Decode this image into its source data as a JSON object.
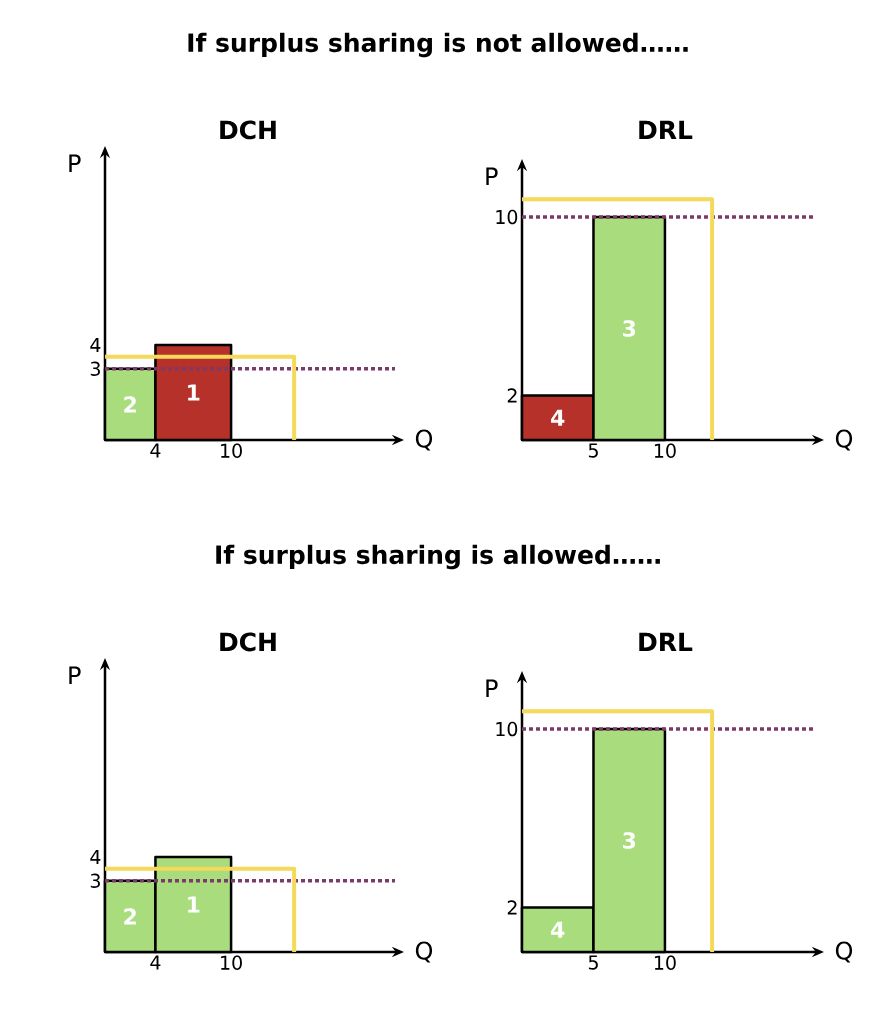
{
  "chart_data": [
    {
      "type": "area",
      "title": "If surplus sharing is not allowed……",
      "subtitle": "DCH",
      "xlabel": "Q",
      "ylabel": "P",
      "xlim": [
        0,
        23
      ],
      "ylim": [
        0,
        12
      ],
      "xticks": [
        4,
        10
      ],
      "yticks": [
        3,
        4
      ],
      "series": [
        {
          "name": "2",
          "color": "#a8dc7c",
          "x": [
            0,
            4
          ],
          "values": [
            3,
            3
          ]
        },
        {
          "name": "1",
          "color": "#b5312a",
          "x": [
            4,
            10
          ],
          "values": [
            4,
            4
          ]
        },
        {
          "type": "line",
          "color": "#f5d95a",
          "x": [
            0,
            15,
            15
          ],
          "values": [
            3.5,
            3.5,
            0
          ]
        }
      ],
      "ref_lines": [
        {
          "axis": "y",
          "value": 3,
          "color": "#7b3a6a",
          "line_style": "dotted"
        }
      ]
    },
    {
      "type": "area",
      "title": "DRL",
      "xlabel": "Q",
      "ylabel": "P",
      "xlim": [
        0,
        20.5
      ],
      "ylim": [
        0,
        12.2
      ],
      "xticks": [
        5,
        10
      ],
      "yticks": [
        2,
        10
      ],
      "series": [
        {
          "name": "4",
          "color": "#b5312a",
          "x": [
            0,
            5
          ],
          "values": [
            2,
            2
          ]
        },
        {
          "name": "3",
          "color": "#a8dc7c",
          "x": [
            5,
            10
          ],
          "values": [
            10,
            10
          ]
        },
        {
          "type": "line",
          "color": "#f5d95a",
          "x": [
            0,
            13.3,
            13.3
          ],
          "values": [
            10.8,
            10.8,
            0
          ]
        }
      ],
      "ref_lines": [
        {
          "axis": "y",
          "value": 10,
          "color": "#7b3a6a",
          "line_style": "dotted"
        }
      ]
    },
    {
      "type": "area",
      "title": "If surplus sharing is allowed……",
      "subtitle": "DCH",
      "xlabel": "Q",
      "ylabel": "P",
      "xlim": [
        0,
        23
      ],
      "ylim": [
        0,
        12
      ],
      "xticks": [
        4,
        10
      ],
      "yticks": [
        3,
        4
      ],
      "series": [
        {
          "name": "2",
          "color": "#a8dc7c",
          "x": [
            0,
            4
          ],
          "values": [
            3,
            3
          ]
        },
        {
          "name": "1",
          "color": "#a8dc7c",
          "x": [
            4,
            10
          ],
          "values": [
            4,
            4
          ]
        },
        {
          "type": "line",
          "color": "#f5d95a",
          "x": [
            0,
            15,
            15
          ],
          "values": [
            3.5,
            3.5,
            0
          ]
        }
      ],
      "ref_lines": [
        {
          "axis": "y",
          "value": 3,
          "color": "#7b3a6a",
          "line_style": "dotted"
        }
      ]
    },
    {
      "type": "area",
      "title": "DRL",
      "xlabel": "Q",
      "ylabel": "P",
      "xlim": [
        0,
        20.5
      ],
      "ylim": [
        0,
        12.2
      ],
      "xticks": [
        5,
        10
      ],
      "yticks": [
        2,
        10
      ],
      "series": [
        {
          "name": "4",
          "color": "#a8dc7c",
          "x": [
            0,
            5
          ],
          "values": [
            2,
            2
          ]
        },
        {
          "name": "3",
          "color": "#a8dc7c",
          "x": [
            5,
            10
          ],
          "values": [
            10,
            10
          ]
        },
        {
          "type": "line",
          "color": "#f5d95a",
          "x": [
            0,
            13.3,
            13.3
          ],
          "values": [
            10.8,
            10.8,
            0
          ]
        }
      ],
      "ref_lines": [
        {
          "axis": "y",
          "value": 10,
          "color": "#7b3a6a",
          "line_style": "dotted"
        }
      ]
    }
  ]
}
